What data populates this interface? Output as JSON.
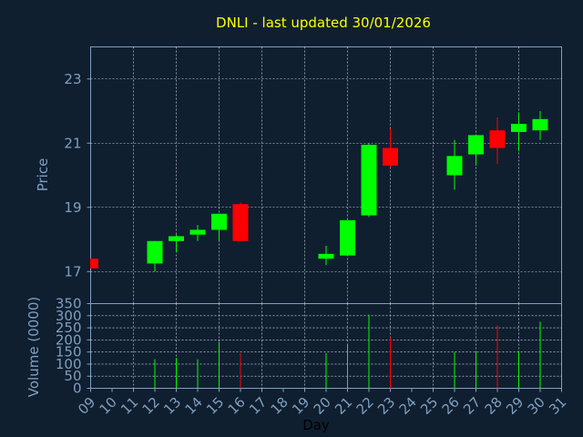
{
  "chart_data": [
    {
      "type": "candlestick",
      "title": "DNLI - last updated 30/01/2026",
      "ylabel": "Price",
      "ylim": [
        16.0,
        24.0
      ],
      "yticks": [
        "17",
        "19",
        "21",
        "23"
      ],
      "grid": true,
      "up_color": "#00ff00",
      "down_color": "#ff0000",
      "candles": [
        {
          "day": 9,
          "open": 17.4,
          "high": 17.4,
          "low": 17.1,
          "close": 17.1
        },
        {
          "day": 12,
          "open": 17.25,
          "high": 17.95,
          "low": 17.0,
          "close": 17.95
        },
        {
          "day": 13,
          "open": 17.95,
          "high": 18.15,
          "low": 17.6,
          "close": 18.1
        },
        {
          "day": 14,
          "open": 18.15,
          "high": 18.45,
          "low": 17.95,
          "close": 18.3
        },
        {
          "day": 15,
          "open": 18.3,
          "high": 18.8,
          "low": 17.95,
          "close": 18.8
        },
        {
          "day": 16,
          "open": 19.1,
          "high": 19.15,
          "low": 17.95,
          "close": 17.95
        },
        {
          "day": 20,
          "open": 17.4,
          "high": 17.8,
          "low": 17.2,
          "close": 17.55
        },
        {
          "day": 21,
          "open": 17.5,
          "high": 18.6,
          "low": 17.5,
          "close": 18.6
        },
        {
          "day": 22,
          "open": 18.75,
          "high": 21.0,
          "low": 18.7,
          "close": 20.95
        },
        {
          "day": 23,
          "open": 20.85,
          "high": 21.45,
          "low": 20.25,
          "close": 20.3
        },
        {
          "day": 26,
          "open": 20.0,
          "high": 21.1,
          "low": 19.55,
          "close": 20.6
        },
        {
          "day": 27,
          "open": 20.65,
          "high": 21.25,
          "low": 20.3,
          "close": 21.25
        },
        {
          "day": 28,
          "open": 21.4,
          "high": 21.8,
          "low": 20.35,
          "close": 20.85
        },
        {
          "day": 29,
          "open": 21.35,
          "high": 21.95,
          "low": 20.75,
          "close": 21.6
        },
        {
          "day": 30,
          "open": 21.4,
          "high": 22.0,
          "low": 21.1,
          "close": 21.75
        }
      ]
    },
    {
      "type": "bar",
      "ylabel": "Volume (0000)",
      "xlabel": "Day",
      "ylim": [
        0,
        350
      ],
      "yticks": [
        "0",
        "50",
        "100",
        "150",
        "200",
        "250",
        "300",
        "350"
      ],
      "categories": [
        "09",
        "10",
        "11",
        "12",
        "13",
        "14",
        "15",
        "16",
        "17",
        "18",
        "19",
        "20",
        "21",
        "22",
        "23",
        "24",
        "25",
        "26",
        "27",
        "28",
        "29",
        "30",
        "31"
      ],
      "volumes": [
        {
          "day": 12,
          "value": 120,
          "color": "#00ff00"
        },
        {
          "day": 13,
          "value": 125,
          "color": "#00ff00"
        },
        {
          "day": 14,
          "value": 120,
          "color": "#00ff00"
        },
        {
          "day": 15,
          "value": 190,
          "color": "#00ff00"
        },
        {
          "day": 16,
          "value": 145,
          "color": "#ff0000"
        },
        {
          "day": 20,
          "value": 145,
          "color": "#00ff00"
        },
        {
          "day": 21,
          "value": 185,
          "color": "#00ff00"
        },
        {
          "day": 22,
          "value": 305,
          "color": "#00ff00"
        },
        {
          "day": 23,
          "value": 210,
          "color": "#ff0000"
        },
        {
          "day": 26,
          "value": 150,
          "color": "#00ff00"
        },
        {
          "day": 27,
          "value": 150,
          "color": "#00ff00"
        },
        {
          "day": 28,
          "value": 260,
          "color": "#ff0000"
        },
        {
          "day": 29,
          "value": 155,
          "color": "#00ff00"
        },
        {
          "day": 30,
          "value": 275,
          "color": "#00ff00"
        }
      ]
    }
  ],
  "colors": {
    "background": "#0f1f30",
    "plot_border": "#7f9fbf",
    "grid": "#ffffff",
    "text": "#7f9fbf",
    "title": "#ffff00"
  }
}
